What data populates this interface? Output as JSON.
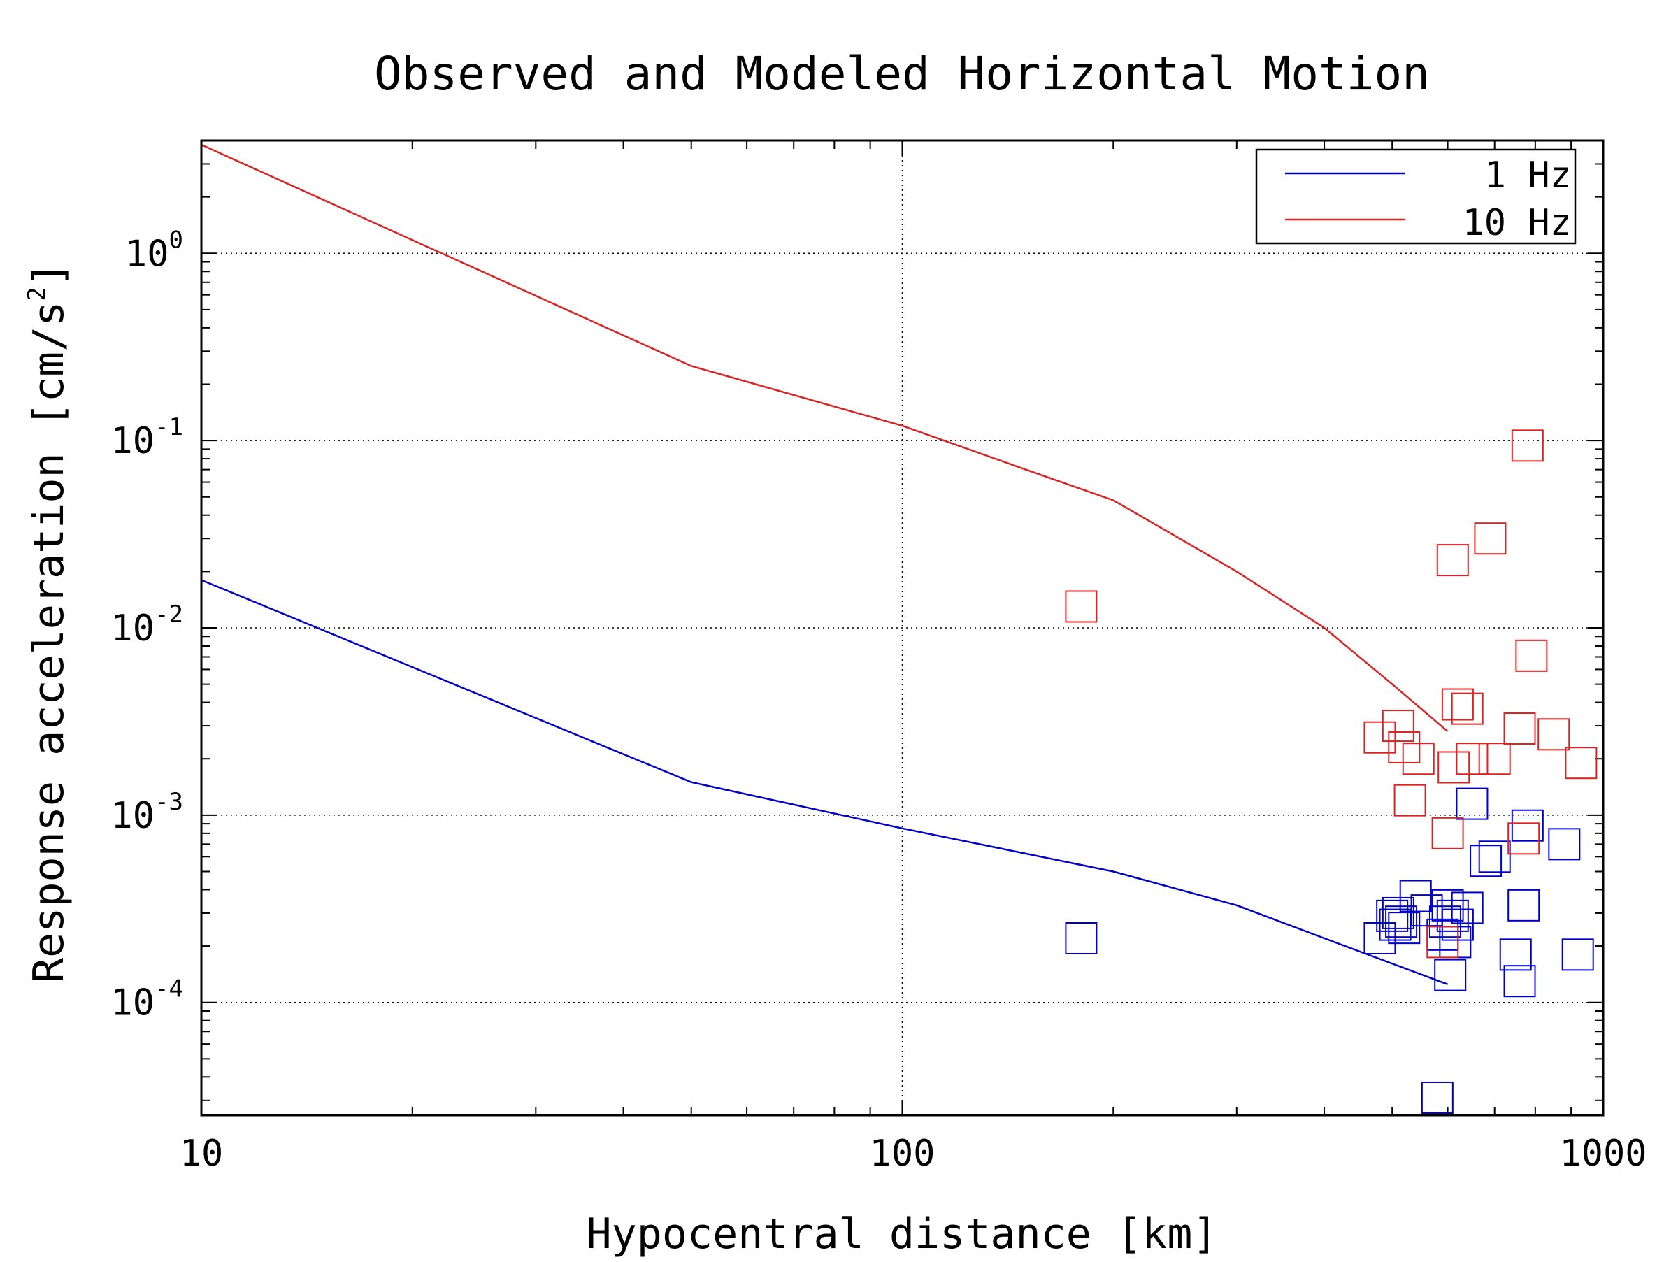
{
  "chart_data": {
    "type": "scatter",
    "title": "Observed and Modeled Horizontal Motion",
    "xlabel": "Hypocentral distance [km]",
    "ylabel": "Response acceleration [cm/s",
    "ylabel_exponent": "2",
    "ylabel_close": "]",
    "xscale": "log",
    "yscale": "log",
    "xlim": [
      10,
      1000
    ],
    "ylim": [
      2.5e-05,
      4
    ],
    "grid": true,
    "legend_position": "top-right",
    "x_ticks": [
      {
        "value": 10,
        "label": "10"
      },
      {
        "value": 100,
        "label": "100"
      },
      {
        "value": 1000,
        "label": "1000"
      }
    ],
    "y_ticks": [
      {
        "value": 1,
        "base": "10",
        "exp": "0"
      },
      {
        "value": 0.1,
        "base": "10",
        "exp": "-1"
      },
      {
        "value": 0.01,
        "base": "10",
        "exp": "-2"
      },
      {
        "value": 0.001,
        "base": "10",
        "exp": "-3"
      },
      {
        "value": 0.0001,
        "base": "10",
        "exp": "-4"
      }
    ],
    "series": [
      {
        "name": "1 Hz",
        "color": "#0000cc",
        "model_curve": {
          "x": [
            10,
            50,
            100,
            200,
            300,
            400,
            600
          ],
          "y": [
            0.018,
            0.0015,
            0.00085,
            0.0005,
            0.00033,
            0.00022,
            0.000125
          ]
        },
        "observed": {
          "x": [
            180,
            480,
            500,
            505,
            510,
            515,
            520,
            540,
            560,
            580,
            590,
            595,
            600,
            605,
            610,
            615,
            620,
            640,
            650,
            680,
            700,
            750,
            760,
            770,
            780,
            880,
            920
          ],
          "y": [
            0.00022,
            0.00022,
            0.00029,
            0.00026,
            0.0003,
            0.00027,
            0.00025,
            0.00037,
            0.00031,
            3.1e-05,
            0.00023,
            0.00027,
            0.00033,
            0.00014,
            0.00029,
            0.00021,
            0.00026,
            0.00032,
            0.00115,
            0.00057,
            0.0006,
            0.00018,
            0.00013,
            0.00033,
            0.00088,
            0.0007,
            0.00018
          ]
        }
      },
      {
        "name": "10 Hz",
        "color": "#dd2222",
        "model_curve": {
          "x": [
            10,
            50,
            100,
            150,
            200,
            300,
            400,
            500,
            600
          ],
          "y": [
            3.8,
            0.25,
            0.12,
            0.07,
            0.048,
            0.02,
            0.01,
            0.005,
            0.0028
          ]
        },
        "observed": {
          "x": [
            180,
            480,
            510,
            520,
            530,
            545,
            590,
            600,
            610,
            612,
            620,
            640,
            650,
            690,
            700,
            760,
            770,
            780,
            790,
            850,
            930
          ],
          "y": [
            0.013,
            0.0026,
            0.003,
            0.0023,
            0.0012,
            0.002,
            0.00021,
            0.0008,
            0.023,
            0.0018,
            0.0039,
            0.0037,
            0.002,
            0.03,
            0.002,
            0.0029,
            0.00075,
            0.094,
            0.0071,
            0.0027,
            0.0019
          ]
        }
      }
    ]
  }
}
